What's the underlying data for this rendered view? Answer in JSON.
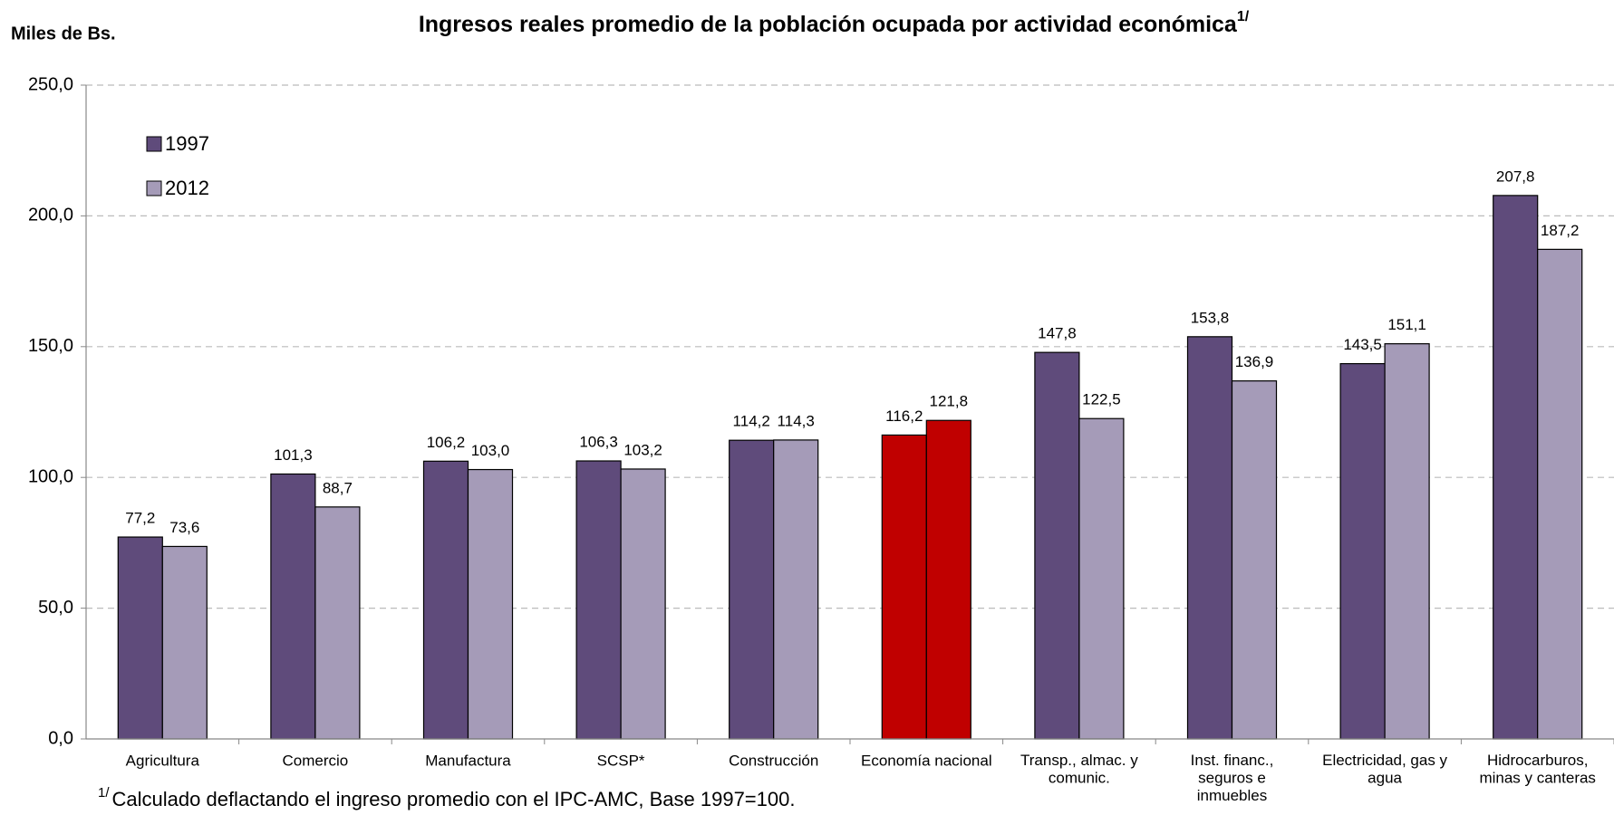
{
  "chart_data": {
    "type": "bar",
    "title": "Ingresos reales promedio de la población ocupada por actividad económica",
    "title_note": "1/",
    "y_label": "Miles de Bs.",
    "footnote_mark": "1/",
    "footnote": "Calculado deflactando el ingreso promedio con el IPC-AMC, Base 1997=100.",
    "categories": [
      "Agricultura",
      "Comercio",
      "Manufactura",
      "SCSP*",
      "Construcción",
      "Economía nacional",
      "Transp., almac. y\ncomunic.",
      "Inst. financ.,\nseguros e\ninmuebles",
      "Electricidad, gas y\nagua",
      "Hidrocarburos,\nminas y canteras"
    ],
    "series": [
      {
        "name": "1997",
        "color": "#5f4b7b",
        "values": [
          77.2,
          101.3,
          106.2,
          106.3,
          114.2,
          116.2,
          147.8,
          153.8,
          143.5,
          207.8
        ],
        "value_labels": [
          "77,2",
          "101,3",
          "106,2",
          "106,3",
          "114,2",
          "116,2",
          "147,8",
          "153,8",
          "143,5",
          "207,8"
        ]
      },
      {
        "name": "2012",
        "color": "#a59bb8",
        "values": [
          73.6,
          88.7,
          103.0,
          103.2,
          114.3,
          121.8,
          122.5,
          136.9,
          151.1,
          187.2
        ],
        "value_labels": [
          "73,6",
          "88,7",
          "103,0",
          "103,2",
          "114,3",
          "121,8",
          "122,5",
          "136,9",
          "151,1",
          "187,2"
        ]
      }
    ],
    "highlight_index": 5,
    "highlight_color": "#c00000",
    "ylim": [
      0,
      250
    ],
    "yticks": [
      {
        "value": 0,
        "label": "0,0"
      },
      {
        "value": 50,
        "label": "50,0"
      },
      {
        "value": 100,
        "label": "100,0"
      },
      {
        "value": 150,
        "label": "150,0"
      },
      {
        "value": 200,
        "label": "200,0"
      },
      {
        "value": 250,
        "label": "250,0"
      }
    ],
    "grid": true,
    "legend": "top-left"
  }
}
